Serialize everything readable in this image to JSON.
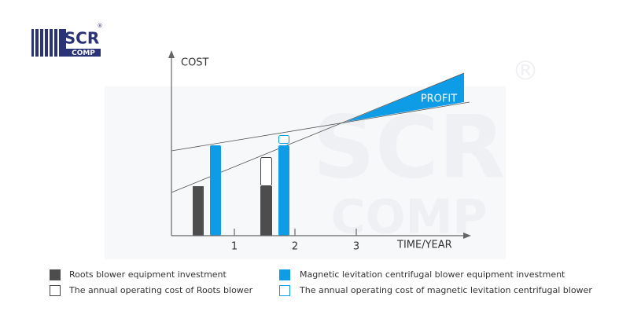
{
  "logo": {
    "name": "SCR",
    "sub": "COMP",
    "mark": "®"
  },
  "watermark": {
    "name": "SCR",
    "sub": "COMP",
    "mark": "®"
  },
  "axes": {
    "y_label": "COST",
    "x_label": "TIME/YEAR",
    "x_ticks": [
      "1",
      "2",
      "3"
    ]
  },
  "annotation": "PROFIT",
  "legend": [
    "Roots blower equipment investment",
    "Magnetic levitation centrifugal blower equipment investment",
    "The annual operating cost of Roots blower",
    "The annual operating cost of magnetic levitation centrifugal blower"
  ]
}
